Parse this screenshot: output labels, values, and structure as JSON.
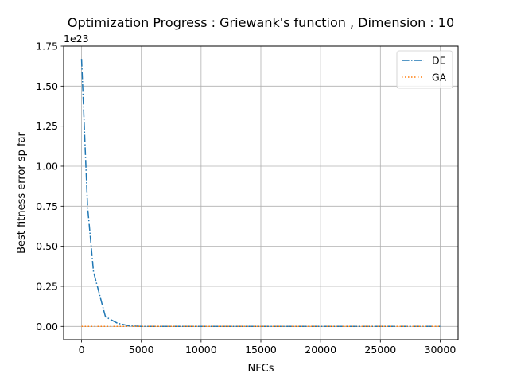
{
  "chart_data": {
    "type": "line",
    "title": "Optimization Progress : Griewank's function , Dimension : 10",
    "xlabel": "NFCs",
    "ylabel": "Best fitness error sp far",
    "y_offset_text": "1e23",
    "y_scale": 1e+23,
    "xlim": [
      -1500,
      31500
    ],
    "ylim": [
      -0.083,
      1.75
    ],
    "x_ticks": [
      0,
      5000,
      10000,
      15000,
      20000,
      25000,
      30000
    ],
    "x_tick_labels": [
      "0",
      "5000",
      "10000",
      "15000",
      "20000",
      "25000",
      "30000"
    ],
    "y_ticks": [
      0.0,
      0.25,
      0.5,
      0.75,
      1.0,
      1.25,
      1.5,
      1.75
    ],
    "y_tick_labels": [
      "0.00",
      "0.25",
      "0.50",
      "0.75",
      "1.00",
      "1.25",
      "1.50",
      "1.75"
    ],
    "grid": true,
    "legend_position": "top-right",
    "series": [
      {
        "name": "DE",
        "color": "#1f77b4",
        "style": "dashdot",
        "x": [
          0,
          500,
          1000,
          2000,
          3000,
          4000,
          5000,
          10000,
          15000,
          20000,
          25000,
          30000
        ],
        "y": [
          1.67,
          0.75,
          0.34,
          0.06,
          0.02,
          0.003,
          0.0005,
          0.0,
          0.0,
          0.0,
          0.0,
          0.0
        ]
      },
      {
        "name": "GA",
        "color": "#ff7f0e",
        "style": "dotted",
        "x": [
          0,
          5000,
          10000,
          15000,
          20000,
          25000,
          30000
        ],
        "y": [
          0.0,
          0.0,
          0.0,
          0.0,
          0.0,
          0.0,
          0.0
        ]
      }
    ]
  }
}
